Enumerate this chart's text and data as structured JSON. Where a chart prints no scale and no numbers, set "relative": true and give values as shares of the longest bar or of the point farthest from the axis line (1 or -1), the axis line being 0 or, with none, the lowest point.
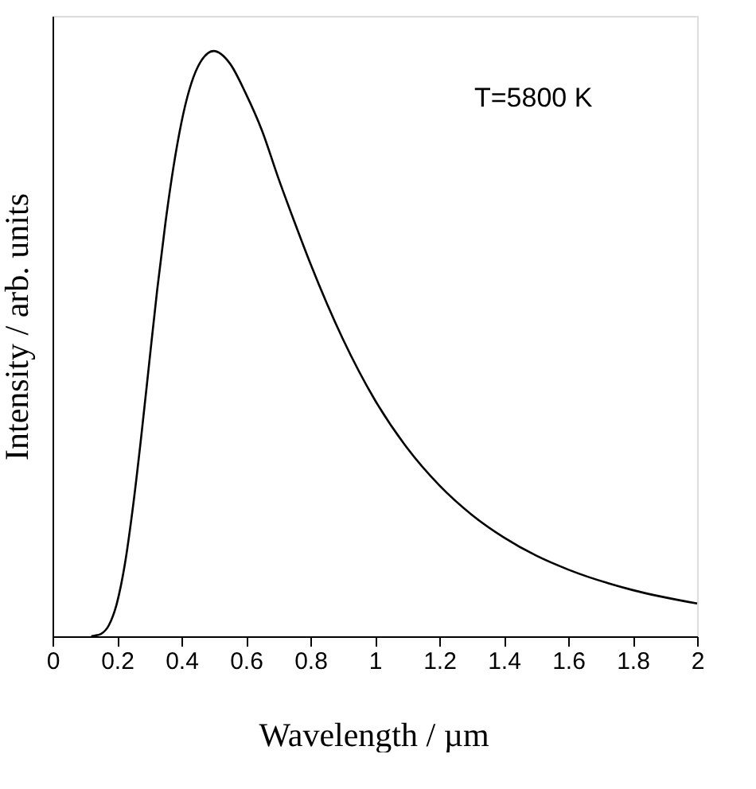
{
  "chart_data": {
    "type": "line",
    "relative": true,
    "xlabel": "Wavelength / µm",
    "ylabel": "Intensity / arb. units",
    "x": [
      0.12,
      0.13,
      0.15,
      0.175,
      0.2,
      0.225,
      0.25,
      0.275,
      0.3,
      0.325,
      0.35,
      0.375,
      0.4,
      0.45,
      0.5,
      0.55,
      0.6,
      0.65,
      0.7,
      0.75,
      0.8,
      0.9,
      1.0,
      1.1,
      1.2,
      1.3,
      1.4,
      1.5,
      1.6,
      1.8,
      2.0
    ],
    "series": [
      {
        "color": "#000000",
        "values": [
          0.0,
          0.001,
          0.004,
          0.019,
          0.057,
          0.125,
          0.223,
          0.34,
          0.467,
          0.593,
          0.705,
          0.801,
          0.878,
          0.972,
          1.0,
          0.979,
          0.927,
          0.864,
          0.784,
          0.709,
          0.637,
          0.509,
          0.404,
          0.322,
          0.258,
          0.208,
          0.169,
          0.138,
          0.114,
          0.079,
          0.056
        ]
      }
    ],
    "xlim": [
      0,
      2
    ],
    "xticks": [
      0,
      0.2,
      0.4,
      0.6,
      0.8,
      1,
      1.2,
      1.4,
      1.6,
      1.8,
      2
    ],
    "tick_labels": "x",
    "grid": false,
    "legend": false,
    "marker": "none",
    "line_style": "solid",
    "annotations": [
      "T=5800 K"
    ]
  }
}
